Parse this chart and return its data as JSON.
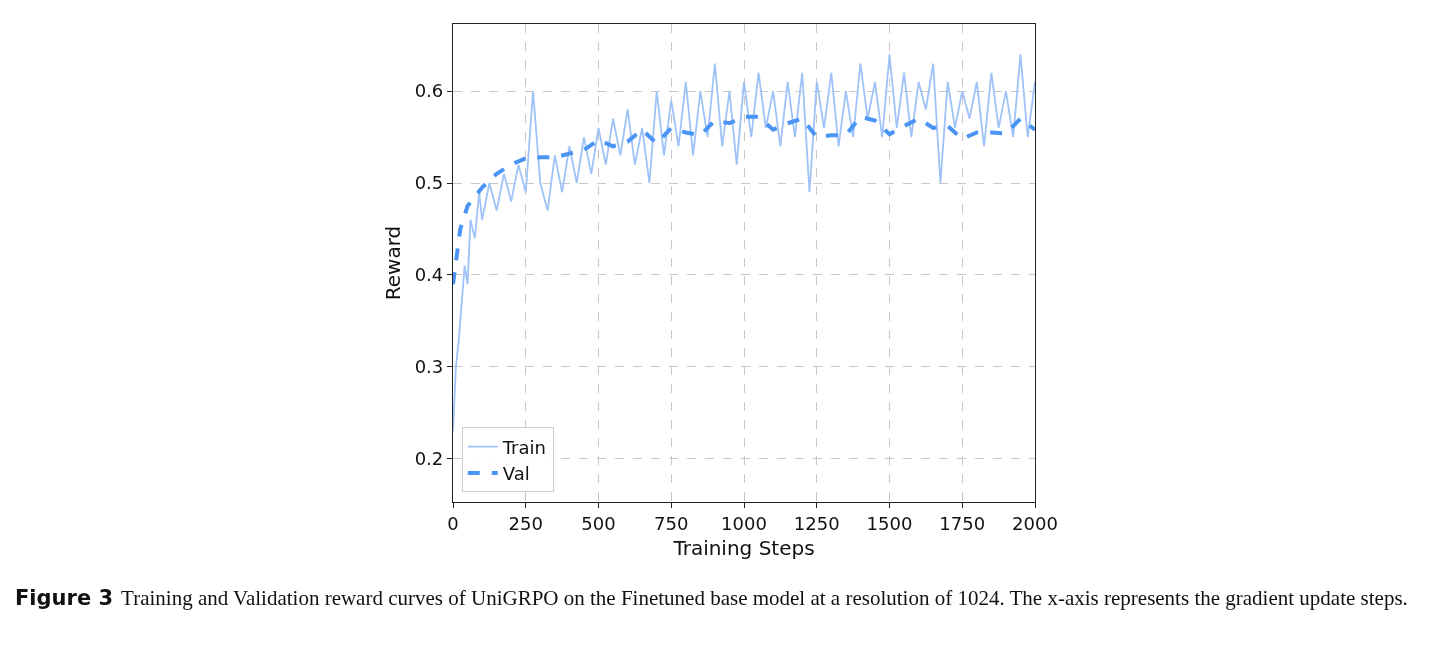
{
  "chart_data": {
    "type": "line",
    "xlabel": "Training Steps",
    "ylabel": "Reward",
    "xlim": [
      0,
      2000
    ],
    "xticks": [
      0,
      250,
      500,
      750,
      1000,
      1250,
      1500,
      1750,
      2000
    ],
    "ylim": [
      0.153,
      0.673
    ],
    "yticks": [
      0.2,
      0.3,
      0.4,
      0.5,
      0.6
    ],
    "grid": true,
    "legend": "bottom left",
    "marker": "none",
    "annotations": [
      "Figure 3",
      "Training and Validation reward curves of UniGRPO on the Finetuned base model at a resolution of 1024. The x-axis represents the gradient update steps."
    ],
    "series": [
      {
        "name": "Train",
        "color": "#9fc3f7",
        "line_style": "solid",
        "x": [
          0,
          10,
          20,
          30,
          40,
          50,
          60,
          75,
          90,
          100,
          125,
          150,
          175,
          200,
          225,
          250,
          275,
          300,
          325,
          350,
          375,
          400,
          425,
          450,
          475,
          500,
          525,
          550,
          575,
          600,
          625,
          650,
          675,
          700,
          725,
          750,
          775,
          800,
          825,
          850,
          875,
          900,
          925,
          950,
          975,
          1000,
          1025,
          1050,
          1075,
          1100,
          1125,
          1150,
          1175,
          1200,
          1225,
          1250,
          1275,
          1300,
          1325,
          1350,
          1375,
          1400,
          1425,
          1450,
          1475,
          1500,
          1525,
          1550,
          1575,
          1600,
          1625,
          1650,
          1675,
          1700,
          1725,
          1750,
          1775,
          1800,
          1825,
          1850,
          1875,
          1900,
          1925,
          1950,
          1975,
          2000
        ],
        "values": [
          0.23,
          0.3,
          0.33,
          0.37,
          0.41,
          0.39,
          0.46,
          0.44,
          0.49,
          0.46,
          0.5,
          0.47,
          0.51,
          0.48,
          0.52,
          0.49,
          0.6,
          0.5,
          0.47,
          0.53,
          0.49,
          0.54,
          0.5,
          0.55,
          0.51,
          0.56,
          0.52,
          0.57,
          0.53,
          0.58,
          0.52,
          0.56,
          0.5,
          0.6,
          0.53,
          0.59,
          0.54,
          0.61,
          0.53,
          0.6,
          0.55,
          0.63,
          0.54,
          0.6,
          0.52,
          0.61,
          0.55,
          0.62,
          0.56,
          0.6,
          0.54,
          0.61,
          0.55,
          0.62,
          0.49,
          0.61,
          0.56,
          0.62,
          0.54,
          0.6,
          0.55,
          0.63,
          0.57,
          0.61,
          0.55,
          0.64,
          0.56,
          0.62,
          0.55,
          0.61,
          0.58,
          0.63,
          0.5,
          0.61,
          0.56,
          0.6,
          0.57,
          0.61,
          0.54,
          0.62,
          0.56,
          0.6,
          0.55,
          0.64,
          0.55,
          0.61
        ]
      },
      {
        "name": "Val",
        "color": "#4a94f5",
        "line_style": "dashed",
        "x": [
          0,
          25,
          50,
          100,
          150,
          200,
          250,
          300,
          350,
          400,
          450,
          500,
          550,
          600,
          650,
          700,
          750,
          800,
          850,
          900,
          950,
          1000,
          1050,
          1100,
          1150,
          1200,
          1250,
          1300,
          1350,
          1400,
          1450,
          1500,
          1550,
          1600,
          1650,
          1700,
          1750,
          1800,
          1850,
          1900,
          1950,
          2000
        ],
        "values": [
          0.39,
          0.45,
          0.475,
          0.495,
          0.51,
          0.52,
          0.527,
          0.528,
          0.528,
          0.532,
          0.536,
          0.547,
          0.54,
          0.545,
          0.558,
          0.543,
          0.56,
          0.555,
          0.552,
          0.568,
          0.565,
          0.572,
          0.572,
          0.558,
          0.565,
          0.57,
          0.55,
          0.552,
          0.552,
          0.572,
          0.568,
          0.553,
          0.562,
          0.57,
          0.56,
          0.562,
          0.548,
          0.555,
          0.555,
          0.554,
          0.57,
          0.558
        ]
      }
    ]
  }
}
